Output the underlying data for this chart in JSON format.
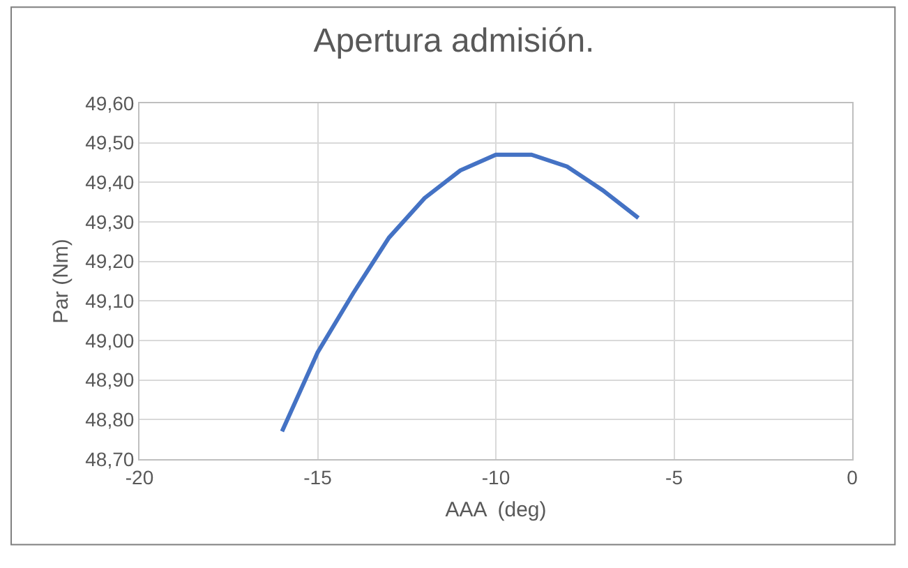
{
  "chart_data": {
    "type": "line",
    "title": "Apertura admisión.",
    "xlabel": "AAA  (deg)",
    "ylabel": "Par (Nm)",
    "x": [
      -16,
      -15,
      -14,
      -13,
      -12,
      -11,
      -10,
      -9,
      -8,
      -7,
      -6
    ],
    "series": [
      {
        "color": "#4472c4",
        "values": [
          48.77,
          48.97,
          49.12,
          49.26,
          49.36,
          49.43,
          49.47,
          49.47,
          49.44,
          49.38,
          49.31
        ]
      }
    ],
    "xlim": [
      -20,
      0
    ],
    "xticks": [
      -20,
      -15,
      -10,
      -5,
      0
    ],
    "ylim": [
      48.7,
      49.6
    ],
    "yticks": [
      {
        "value": 48.7,
        "label": "48,70"
      },
      {
        "value": 48.8,
        "label": "48,80"
      },
      {
        "value": 48.9,
        "label": "48,90"
      },
      {
        "value": 49.0,
        "label": "49,00"
      },
      {
        "value": 49.1,
        "label": "49,10"
      },
      {
        "value": 49.2,
        "label": "49,20"
      },
      {
        "value": 49.3,
        "label": "49,30"
      },
      {
        "value": 49.4,
        "label": "49,40"
      },
      {
        "value": 49.5,
        "label": "49,50"
      },
      {
        "value": 49.6,
        "label": "49,60"
      }
    ],
    "grid": true,
    "marker": "none",
    "line_style": "solid"
  }
}
